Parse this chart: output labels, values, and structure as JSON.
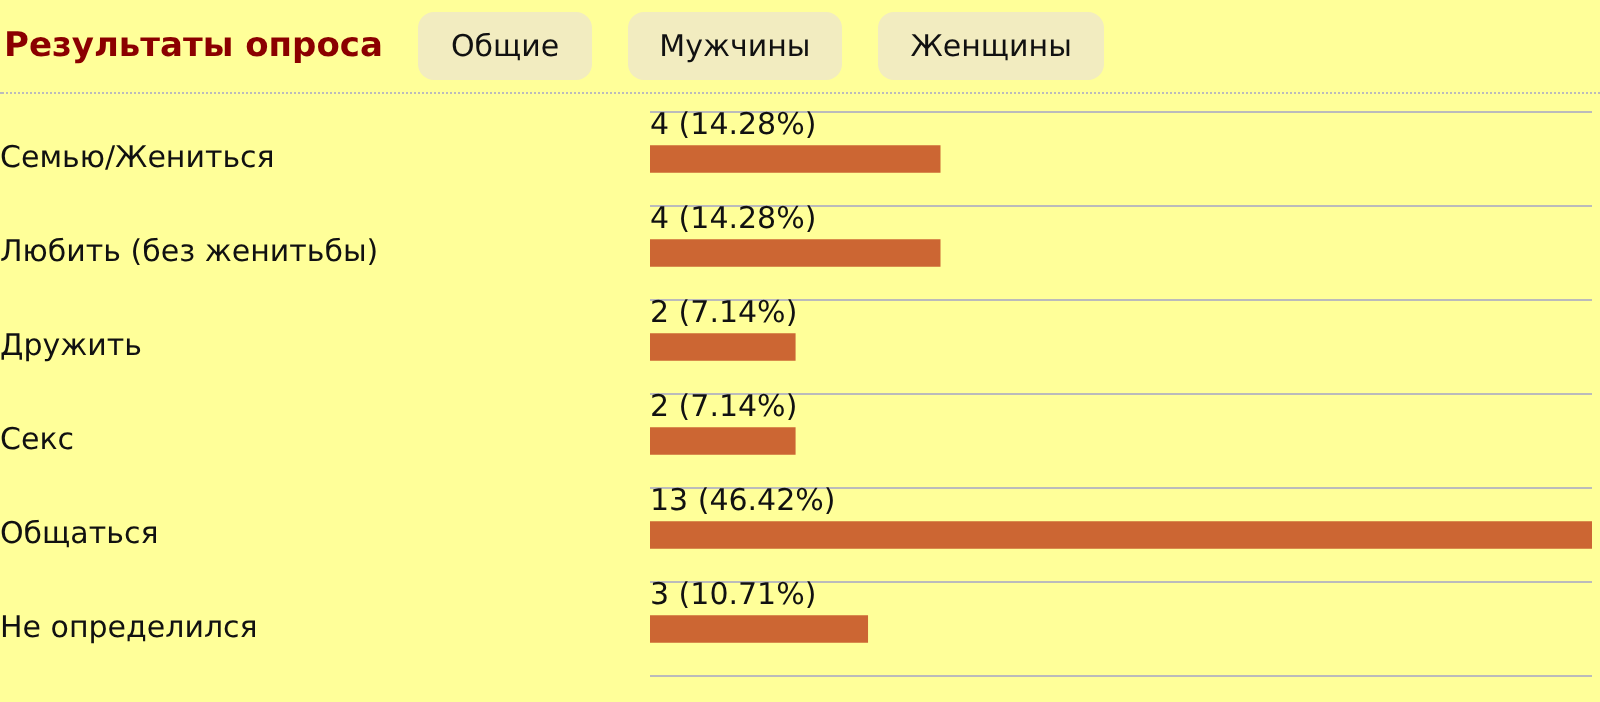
{
  "chart_data": {
    "type": "bar",
    "orientation": "horizontal",
    "title": "Результаты опроса",
    "annotations": [
      "Общие",
      "Мужчины",
      "Женщины"
    ],
    "categories": [
      "Семью/Жениться",
      "Любить (без женитьбы)",
      "Дружить",
      "Секс",
      "Общаться",
      "Не определился"
    ],
    "values": [
      4,
      4,
      2,
      2,
      13,
      3
    ],
    "value_labels": [
      "4 (14.28%)",
      "4 (14.28%)",
      "2 (7.14%)",
      "2 (7.14%)",
      "13 (46.42%)",
      "3 (10.71%)"
    ],
    "color": "#cc6633",
    "grid": "y",
    "legend": false
  }
}
